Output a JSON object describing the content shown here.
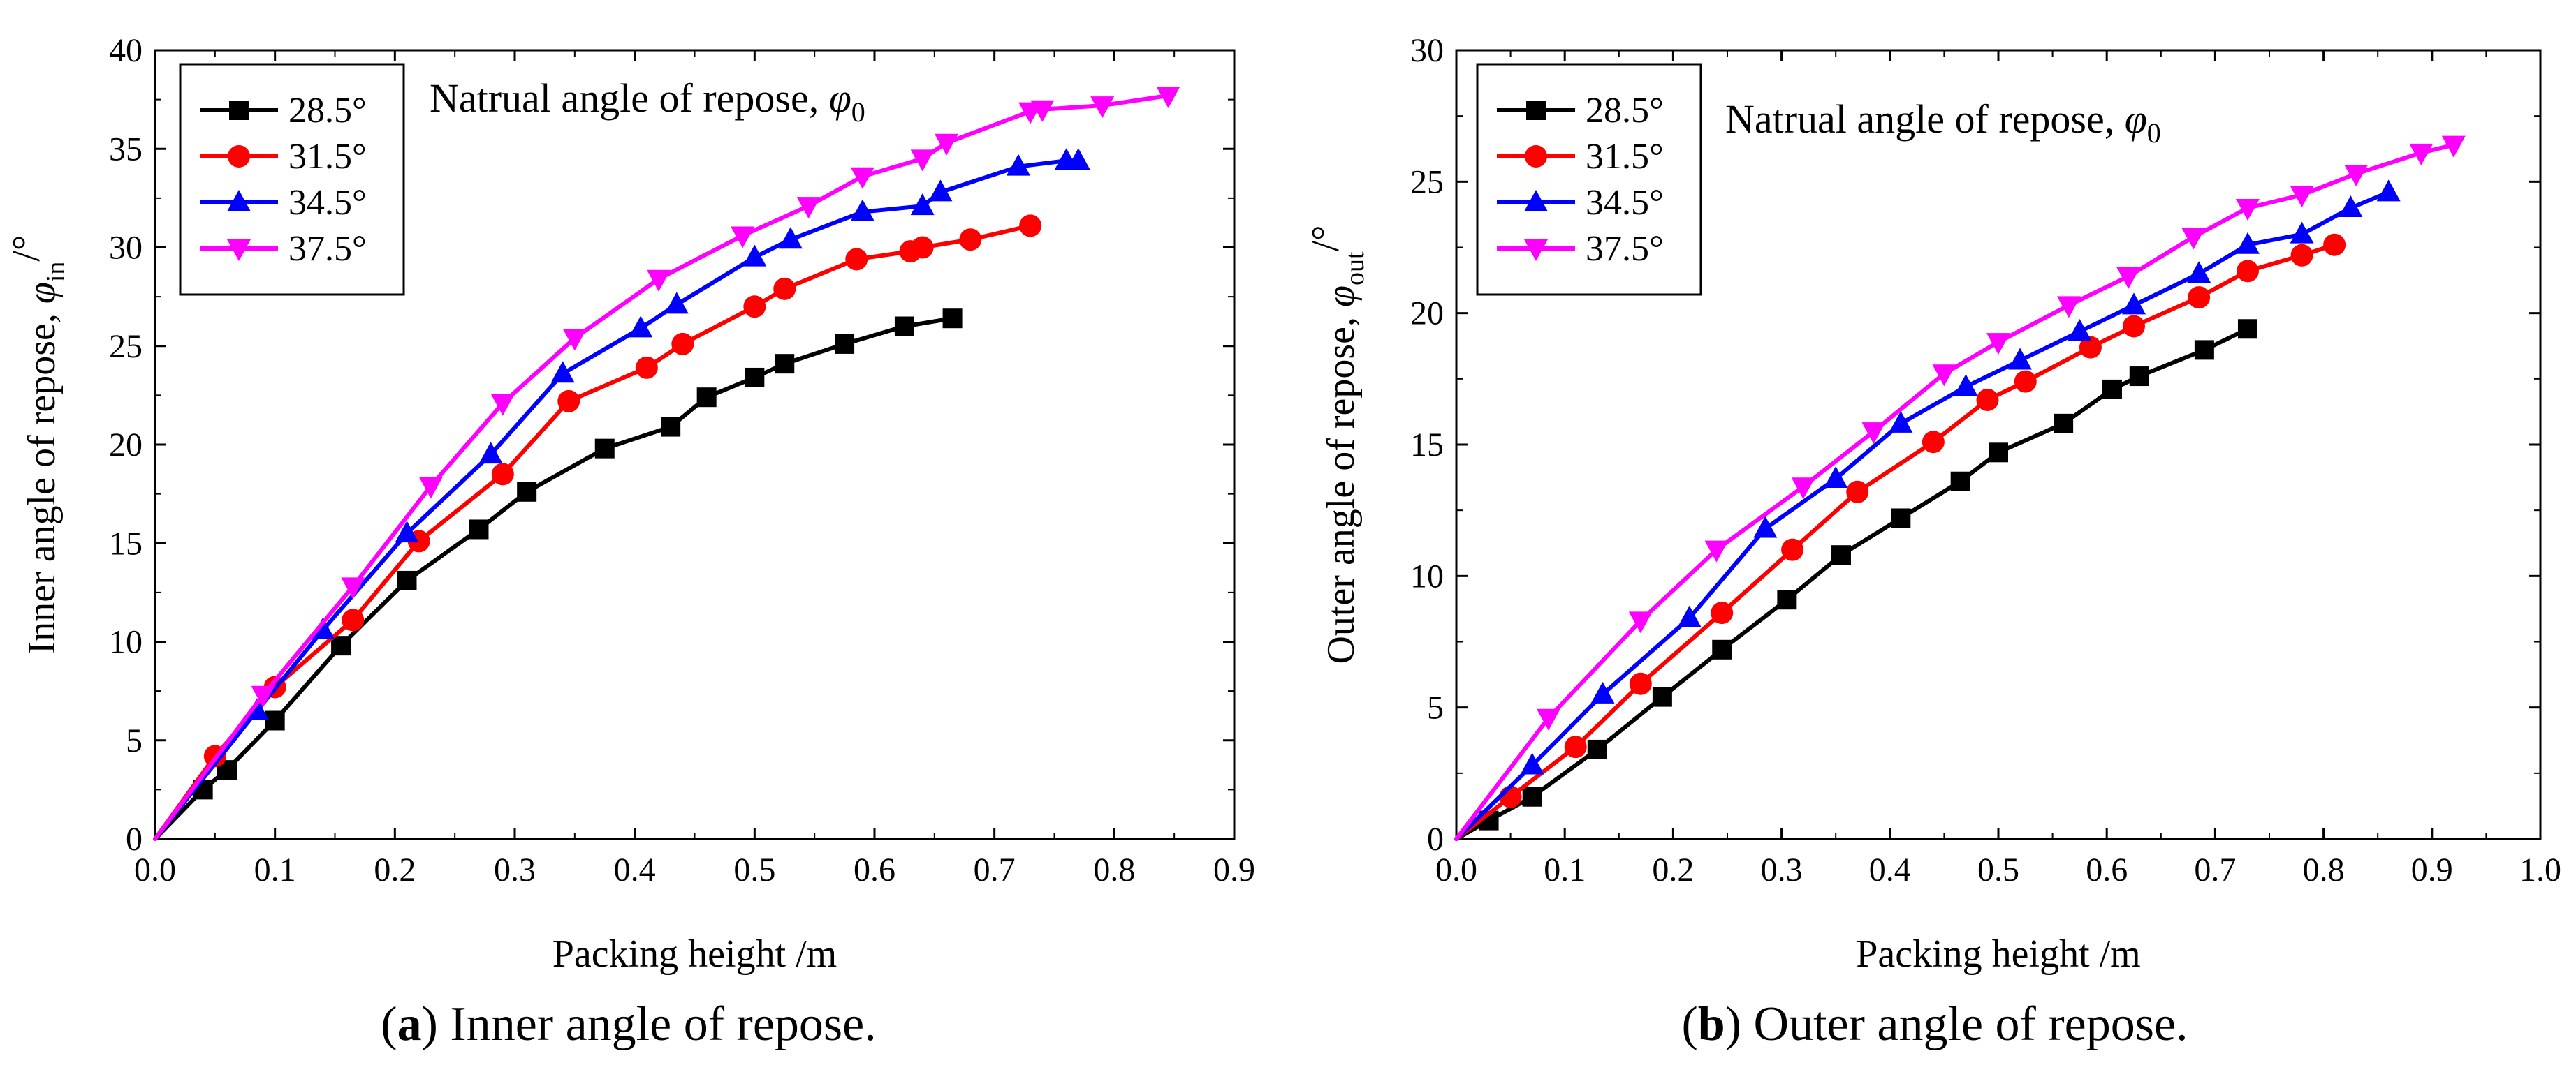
{
  "chart_data": [
    {
      "type": "line",
      "panel": "a",
      "caption_letter": "a",
      "caption_text": " Inner angle of repose.",
      "xlabel": "Packing height /m",
      "ylabel_main": "Inner angle of repose, ",
      "ylabel_symbol": "φ",
      "ylabel_subscript": "in",
      "ylabel_unit": "/°",
      "annotation_main": "Natrual angle of repose,",
      "annotation_symbol": "φ",
      "annotation_subscript": "0",
      "xlim": [
        0.0,
        0.9
      ],
      "ylim": [
        0,
        40
      ],
      "xticks": [
        0.0,
        0.1,
        0.2,
        0.3,
        0.4,
        0.5,
        0.6,
        0.7,
        0.8,
        0.9
      ],
      "xtick_labels": [
        "0.0",
        "0.1",
        "0.2",
        "0.3",
        "0.4",
        "0.5",
        "0.6",
        "0.7",
        "0.8",
        "0.9"
      ],
      "yticks": [
        0,
        5,
        10,
        15,
        20,
        25,
        30,
        35,
        40
      ],
      "ytick_labels": [
        "0",
        "5",
        "10",
        "15",
        "20",
        "25",
        "30",
        "35",
        "40"
      ],
      "legend_position": "top-left",
      "series": [
        {
          "name": "28.5°",
          "color": "#000000",
          "marker": "square",
          "x": [
            0.0,
            0.04,
            0.06,
            0.1,
            0.155,
            0.21,
            0.27,
            0.31,
            0.375,
            0.43,
            0.46,
            0.5,
            0.525,
            0.575,
            0.625,
            0.665
          ],
          "y": [
            0.0,
            2.5,
            3.5,
            6.0,
            9.8,
            13.1,
            15.7,
            17.6,
            19.8,
            20.9,
            22.4,
            23.4,
            24.1,
            25.1,
            26.0,
            26.4
          ]
        },
        {
          "name": "31.5°",
          "color": "#ff0000",
          "marker": "circle",
          "x": [
            0.0,
            0.05,
            0.1,
            0.165,
            0.22,
            0.29,
            0.345,
            0.41,
            0.44,
            0.5,
            0.525,
            0.585,
            0.63,
            0.64,
            0.68,
            0.73
          ],
          "y": [
            0.0,
            4.2,
            7.7,
            11.1,
            15.1,
            18.5,
            22.2,
            23.9,
            25.1,
            27.0,
            27.9,
            29.4,
            29.8,
            30.0,
            30.4,
            31.1
          ]
        },
        {
          "name": "34.5°",
          "color": "#0000ff",
          "marker": "triangle-up",
          "x": [
            0.0,
            0.085,
            0.14,
            0.21,
            0.28,
            0.34,
            0.405,
            0.435,
            0.5,
            0.53,
            0.59,
            0.64,
            0.655,
            0.72,
            0.76,
            0.77
          ],
          "y": [
            0.0,
            6.5,
            10.6,
            15.5,
            19.5,
            23.6,
            25.9,
            27.1,
            29.5,
            30.4,
            31.8,
            32.1,
            32.8,
            34.1,
            34.4,
            34.4
          ]
        },
        {
          "name": "37.5°",
          "color": "#ff00ff",
          "marker": "triangle-down",
          "x": [
            0.0,
            0.09,
            0.165,
            0.23,
            0.29,
            0.35,
            0.42,
            0.49,
            0.545,
            0.59,
            0.64,
            0.66,
            0.73,
            0.74,
            0.79,
            0.845
          ],
          "y": [
            0.0,
            7.3,
            12.8,
            17.9,
            22.1,
            25.4,
            28.4,
            30.6,
            32.1,
            33.6,
            34.5,
            35.3,
            36.9,
            37.0,
            37.2,
            37.7
          ]
        }
      ]
    },
    {
      "type": "line",
      "panel": "b",
      "caption_letter": "b",
      "caption_text": " Outer angle of repose.",
      "xlabel": "Packing height /m",
      "ylabel_main": "Outer angle of repose, ",
      "ylabel_symbol": "φ",
      "ylabel_subscript": "out",
      "ylabel_unit": "/°",
      "annotation_main": "Natrual angle of repose,",
      "annotation_symbol": "φ",
      "annotation_subscript": "0",
      "xlim": [
        0.0,
        1.0
      ],
      "ylim": [
        0,
        30
      ],
      "xticks": [
        0.0,
        0.1,
        0.2,
        0.3,
        0.4,
        0.5,
        0.6,
        0.7,
        0.8,
        0.9,
        1.0
      ],
      "xtick_labels": [
        "0.0",
        "0.1",
        "0.2",
        "0.3",
        "0.4",
        "0.5",
        "0.6",
        "0.7",
        "0.8",
        "0.9",
        "1.0"
      ],
      "yticks": [
        0,
        5,
        10,
        15,
        20,
        25,
        30
      ],
      "ytick_labels": [
        "0",
        "5",
        "10",
        "15",
        "20",
        "25",
        "30"
      ],
      "legend_position": "top-left",
      "series": [
        {
          "name": "28.5°",
          "color": "#000000",
          "marker": "square",
          "x": [
            0.0,
            0.03,
            0.07,
            0.13,
            0.19,
            0.245,
            0.305,
            0.355,
            0.41,
            0.465,
            0.5,
            0.56,
            0.605,
            0.63,
            0.69,
            0.73
          ],
          "y": [
            0.0,
            0.7,
            1.6,
            3.4,
            5.4,
            7.2,
            9.1,
            10.8,
            12.2,
            13.6,
            14.7,
            15.8,
            17.1,
            17.6,
            18.6,
            19.4
          ]
        },
        {
          "name": "31.5°",
          "color": "#ff0000",
          "marker": "circle",
          "x": [
            0.0,
            0.05,
            0.11,
            0.17,
            0.245,
            0.31,
            0.37,
            0.44,
            0.49,
            0.525,
            0.585,
            0.625,
            0.685,
            0.73,
            0.78,
            0.81
          ],
          "y": [
            0.0,
            1.6,
            3.5,
            5.9,
            8.6,
            11.0,
            13.2,
            15.1,
            16.7,
            17.4,
            18.7,
            19.5,
            20.6,
            21.6,
            22.2,
            22.6
          ]
        },
        {
          "name": "34.5°",
          "color": "#0000ff",
          "marker": "triangle-up",
          "x": [
            0.0,
            0.07,
            0.135,
            0.215,
            0.285,
            0.35,
            0.41,
            0.47,
            0.52,
            0.575,
            0.625,
            0.685,
            0.73,
            0.78,
            0.825,
            0.86
          ],
          "y": [
            0.0,
            2.8,
            5.5,
            8.4,
            11.8,
            13.7,
            15.8,
            17.2,
            18.2,
            19.3,
            20.3,
            21.5,
            22.6,
            23.0,
            24.0,
            24.6
          ]
        },
        {
          "name": "37.5°",
          "color": "#ff00ff",
          "marker": "triangle-down",
          "x": [
            0.0,
            0.085,
            0.17,
            0.24,
            0.32,
            0.385,
            0.45,
            0.5,
            0.565,
            0.62,
            0.68,
            0.73,
            0.78,
            0.83,
            0.89,
            0.92
          ],
          "y": [
            0.0,
            4.6,
            8.3,
            11.0,
            13.4,
            15.5,
            17.7,
            18.9,
            20.3,
            21.4,
            22.9,
            24.0,
            24.5,
            25.3,
            26.1,
            26.4
          ]
        }
      ]
    }
  ]
}
